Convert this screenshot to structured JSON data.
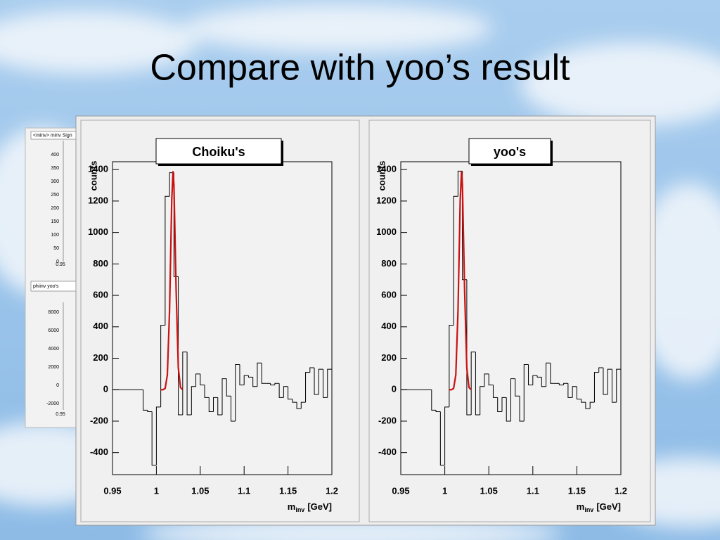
{
  "slide_title": "Compare with yoo’s result",
  "back_panel": {
    "top_title": "<minv> minv Sign",
    "top_ticks": [
      "400",
      "350",
      "300",
      "250",
      "200",
      "150",
      "100",
      "50",
      "0"
    ],
    "top_x_tick": "0.95",
    "bottom_title": "phiinv yoo's",
    "bottom_ticks": [
      "8000",
      "6000",
      "4000",
      "2000",
      "0",
      "-2000"
    ],
    "bottom_x_tick": "0.95"
  },
  "chart_data": [
    {
      "type": "histogram",
      "title": "Choiku's",
      "color": "#000000",
      "bins": [
        0.95,
        0.955,
        0.96,
        0.965,
        0.97,
        0.975,
        0.98,
        0.985,
        0.99,
        0.995,
        1.0,
        1.005,
        1.01,
        1.015,
        1.02,
        1.025,
        1.03,
        1.035,
        1.04,
        1.045,
        1.05,
        1.055,
        1.06,
        1.065,
        1.07,
        1.075,
        1.08,
        1.085,
        1.09,
        1.095,
        1.1,
        1.105,
        1.11,
        1.115,
        1.12,
        1.125,
        1.13,
        1.135,
        1.14,
        1.145,
        1.15,
        1.155,
        1.16,
        1.165,
        1.17,
        1.175,
        1.18,
        1.185,
        1.19,
        1.195,
        1.2
      ],
      "values": [
        0,
        0,
        0,
        0,
        0,
        0,
        0,
        -130,
        -140,
        -480,
        -110,
        410,
        1230,
        1380,
        720,
        -160,
        240,
        -160,
        20,
        100,
        30,
        -50,
        -140,
        -50,
        -160,
        70,
        -40,
        -200,
        160,
        30,
        90,
        80,
        20,
        170,
        40,
        40,
        30,
        40,
        -50,
        20,
        -60,
        -80,
        -120,
        -80,
        110,
        140,
        -30,
        130,
        -50,
        130
      ],
      "fit": {
        "color": "#cc1111",
        "x": [
          1.005,
          1.0075,
          1.01,
          1.0125,
          1.015,
          1.0175,
          1.019,
          1.02,
          1.0225,
          1.025,
          1.0275,
          1.03
        ],
        "values": [
          0,
          0,
          8,
          94,
          500,
          1205,
          1390,
          1305,
          637,
          139,
          14,
          0
        ]
      },
      "xlim": [
        0.95,
        1.2
      ],
      "ylim": [
        -540,
        1450
      ],
      "xticks": [
        0.95,
        1,
        1.05,
        1.1,
        1.15,
        1.2
      ],
      "yticks": [
        -400,
        -200,
        0,
        200,
        400,
        600,
        800,
        1000,
        1200,
        1400
      ],
      "x_label": [
        "m",
        "inv",
        "[GeV]"
      ],
      "y_label": "counts"
    },
    {
      "type": "histogram",
      "title": "yoo's",
      "color": "#000000",
      "bins": [
        0.95,
        0.955,
        0.96,
        0.965,
        0.97,
        0.975,
        0.98,
        0.985,
        0.99,
        0.995,
        1.0,
        1.005,
        1.01,
        1.015,
        1.02,
        1.025,
        1.03,
        1.035,
        1.04,
        1.045,
        1.05,
        1.055,
        1.06,
        1.065,
        1.07,
        1.075,
        1.08,
        1.085,
        1.09,
        1.095,
        1.1,
        1.105,
        1.11,
        1.115,
        1.12,
        1.125,
        1.13,
        1.135,
        1.14,
        1.145,
        1.15,
        1.155,
        1.16,
        1.165,
        1.17,
        1.175,
        1.18,
        1.185,
        1.19,
        1.195,
        1.2
      ],
      "values": [
        0,
        0,
        0,
        0,
        0,
        0,
        0,
        -130,
        -140,
        -480,
        -110,
        410,
        1230,
        1390,
        700,
        -160,
        240,
        -160,
        20,
        100,
        30,
        -50,
        -140,
        -50,
        -200,
        70,
        -40,
        -200,
        160,
        30,
        90,
        80,
        20,
        170,
        40,
        40,
        30,
        40,
        -50,
        20,
        -60,
        -80,
        -120,
        -80,
        110,
        140,
        -30,
        130,
        -80,
        130
      ],
      "fit": {
        "color": "#cc1111",
        "x": [
          1.005,
          1.0075,
          1.01,
          1.0125,
          1.015,
          1.0175,
          1.019,
          1.02,
          1.0225,
          1.025,
          1.0275,
          1.03
        ],
        "values": [
          0,
          0,
          8,
          94,
          500,
          1205,
          1390,
          1305,
          637,
          139,
          14,
          0
        ]
      },
      "xlim": [
        0.95,
        1.2
      ],
      "ylim": [
        -540,
        1450
      ],
      "xticks": [
        0.95,
        1,
        1.05,
        1.1,
        1.15,
        1.2
      ],
      "yticks": [
        -400,
        -200,
        0,
        200,
        400,
        600,
        800,
        1000,
        1200,
        1400
      ],
      "x_label": [
        "m",
        "inv",
        "[GeV]"
      ],
      "y_label": "counts"
    }
  ]
}
